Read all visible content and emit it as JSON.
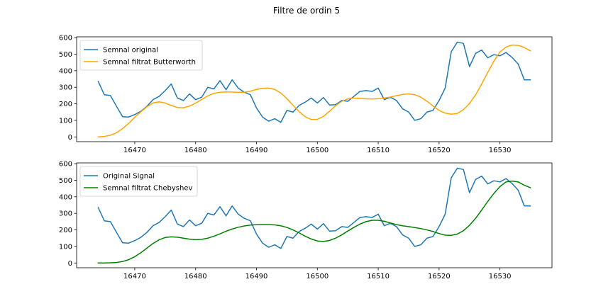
{
  "figure": {
    "title": "Filtre de ordin 5"
  },
  "chart_data": [
    {
      "type": "line",
      "title": "",
      "xlabel": "",
      "ylabel": "",
      "xlim": [
        16460.45,
        16538.55
      ],
      "ylim": [
        -28.8,
        604.8
      ],
      "xticks": [
        16470,
        16480,
        16490,
        16500,
        16510,
        16520,
        16530
      ],
      "yticks": [
        0,
        100,
        200,
        300,
        400,
        500,
        600
      ],
      "grid": false,
      "legend_position": "upper left",
      "x": [
        16464,
        16465,
        16466,
        16467,
        16468,
        16469,
        16470,
        16471,
        16472,
        16473,
        16474,
        16475,
        16476,
        16477,
        16478,
        16479,
        16480,
        16481,
        16482,
        16483,
        16484,
        16485,
        16486,
        16487,
        16488,
        16489,
        16490,
        16491,
        16492,
        16493,
        16494,
        16495,
        16496,
        16497,
        16498,
        16499,
        16500,
        16501,
        16502,
        16503,
        16504,
        16505,
        16506,
        16507,
        16508,
        16509,
        16510,
        16511,
        16512,
        16513,
        16514,
        16515,
        16516,
        16517,
        16518,
        16519,
        16520,
        16521,
        16522,
        16523,
        16524,
        16525,
        16526,
        16527,
        16528,
        16529,
        16530,
        16531,
        16532,
        16533,
        16534,
        16535
      ],
      "series": [
        {
          "name": "Semnal original",
          "color": "#1f77b4",
          "values": [
            335,
            255,
            250,
            185,
            122,
            120,
            135,
            155,
            185,
            225,
            245,
            280,
            320,
            235,
            220,
            260,
            225,
            240,
            300,
            290,
            340,
            285,
            345,
            295,
            270,
            255,
            175,
            120,
            95,
            110,
            88,
            160,
            150,
            190,
            210,
            235,
            205,
            238,
            193,
            195,
            220,
            215,
            245,
            275,
            280,
            275,
            295,
            225,
            240,
            220,
            170,
            150,
            100,
            110,
            150,
            160,
            220,
            295,
            515,
            573,
            565,
            425,
            505,
            525,
            478,
            497,
            490,
            510,
            480,
            440,
            345,
            345
          ]
        },
        {
          "name": "Semnal filtrat Butterworth",
          "color": "#ffa500",
          "values": [
            0,
            3,
            10,
            25,
            50,
            82,
            118,
            152,
            182,
            205,
            212,
            205,
            190,
            178,
            176,
            186,
            204,
            226,
            248,
            263,
            270,
            272,
            271,
            270,
            270,
            276,
            287,
            294,
            295,
            287,
            265,
            231,
            191,
            153,
            122,
            105,
            106,
            124,
            155,
            189,
            215,
            230,
            235,
            233,
            230,
            229,
            231,
            235,
            241,
            249,
            257,
            260,
            255,
            240,
            216,
            187,
            160,
            144,
            137,
            142,
            165,
            202,
            254,
            320,
            390,
            458,
            513,
            543,
            555,
            553,
            540,
            520
          ]
        }
      ]
    },
    {
      "type": "line",
      "title": "",
      "xlabel": "",
      "ylabel": "",
      "xlim": [
        16460.45,
        16538.55
      ],
      "ylim": [
        -28.8,
        604.8
      ],
      "xticks": [
        16470,
        16480,
        16490,
        16500,
        16510,
        16520,
        16530
      ],
      "yticks": [
        0,
        100,
        200,
        300,
        400,
        500,
        600
      ],
      "grid": false,
      "legend_position": "upper left",
      "x": [
        16464,
        16465,
        16466,
        16467,
        16468,
        16469,
        16470,
        16471,
        16472,
        16473,
        16474,
        16475,
        16476,
        16477,
        16478,
        16479,
        16480,
        16481,
        16482,
        16483,
        16484,
        16485,
        16486,
        16487,
        16488,
        16489,
        16490,
        16491,
        16492,
        16493,
        16494,
        16495,
        16496,
        16497,
        16498,
        16499,
        16500,
        16501,
        16502,
        16503,
        16504,
        16505,
        16506,
        16507,
        16508,
        16509,
        16510,
        16511,
        16512,
        16513,
        16514,
        16515,
        16516,
        16517,
        16518,
        16519,
        16520,
        16521,
        16522,
        16523,
        16524,
        16525,
        16526,
        16527,
        16528,
        16529,
        16530,
        16531,
        16532,
        16533,
        16534,
        16535
      ],
      "series": [
        {
          "name": "Original Signal",
          "color": "#1f77b4",
          "values": [
            335,
            255,
            250,
            185,
            122,
            120,
            135,
            155,
            185,
            225,
            245,
            280,
            320,
            235,
            220,
            260,
            225,
            240,
            300,
            290,
            340,
            285,
            345,
            295,
            270,
            255,
            175,
            120,
            95,
            110,
            88,
            160,
            150,
            190,
            210,
            235,
            205,
            238,
            193,
            195,
            220,
            215,
            245,
            275,
            280,
            275,
            295,
            225,
            240,
            220,
            170,
            150,
            100,
            110,
            150,
            160,
            220,
            295,
            515,
            573,
            565,
            425,
            505,
            525,
            478,
            497,
            490,
            510,
            480,
            440,
            345,
            345
          ]
        },
        {
          "name": "Semnal filtrat Chebyshev",
          "color": "#008000",
          "values": [
            0,
            0,
            1,
            3,
            9,
            20,
            38,
            62,
            90,
            118,
            140,
            154,
            158,
            156,
            150,
            144,
            141,
            143,
            150,
            162,
            176,
            192,
            205,
            216,
            224,
            229,
            231,
            232,
            232,
            230,
            225,
            215,
            200,
            182,
            162,
            145,
            133,
            130,
            136,
            150,
            170,
            193,
            215,
            235,
            250,
            258,
            258,
            252,
            242,
            232,
            225,
            220,
            214,
            208,
            200,
            190,
            178,
            168,
            167,
            175,
            195,
            228,
            270,
            320,
            372,
            420,
            462,
            490,
            495,
            490,
            470,
            455
          ]
        }
      ]
    }
  ]
}
